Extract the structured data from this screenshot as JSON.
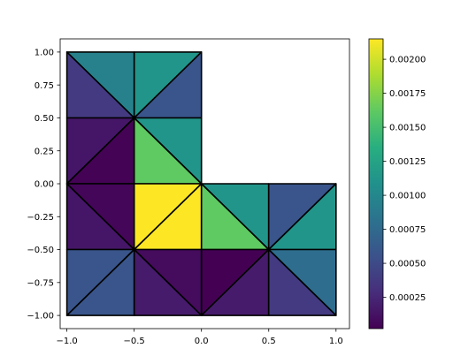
{
  "chart_data": {
    "type": "heatmap",
    "title": "",
    "xlabel": "",
    "ylabel": "",
    "xlim": [
      -1.05,
      1.1
    ],
    "ylim": [
      -1.1,
      1.1
    ],
    "grid": false,
    "legend": "none",
    "colormap": "viridis",
    "color_range": [
      2e-05,
      0.00215
    ],
    "x_ticks": [
      {
        "value": -1.0,
        "label": "−1.0"
      },
      {
        "value": -0.5,
        "label": "−0.5"
      },
      {
        "value": 0.0,
        "label": "0.0"
      },
      {
        "value": 0.5,
        "label": "0.5"
      },
      {
        "value": 1.0,
        "label": "1.0"
      }
    ],
    "y_ticks": [
      {
        "value": 1.0,
        "label": "1.00"
      },
      {
        "value": 0.75,
        "label": "0.75"
      },
      {
        "value": 0.5,
        "label": "0.50"
      },
      {
        "value": 0.25,
        "label": "0.25"
      },
      {
        "value": 0.0,
        "label": "0.00"
      },
      {
        "value": -0.25,
        "label": "−0.25"
      },
      {
        "value": -0.5,
        "label": "−0.50"
      },
      {
        "value": -0.75,
        "label": "−0.75"
      },
      {
        "value": -1.0,
        "label": "−1.00"
      }
    ],
    "colorbar_ticks": [
      {
        "value": 0.00025,
        "label": "0.00025"
      },
      {
        "value": 0.0005,
        "label": "0.00050"
      },
      {
        "value": 0.00075,
        "label": "0.00075"
      },
      {
        "value": 0.001,
        "label": "0.00100"
      },
      {
        "value": 0.00125,
        "label": "0.00125"
      },
      {
        "value": 0.0015,
        "label": "0.00150"
      },
      {
        "value": 0.00175,
        "label": "0.00175"
      },
      {
        "value": 0.002,
        "label": "0.00200"
      }
    ],
    "triangles": [
      {
        "vertices": [
          [
            -1.0,
            1.0
          ],
          [
            -0.5,
            1.0
          ],
          [
            -0.5,
            0.5
          ]
        ],
        "value": 0.00095
      },
      {
        "vertices": [
          [
            -1.0,
            1.0
          ],
          [
            -1.0,
            0.5
          ],
          [
            -0.5,
            0.5
          ]
        ],
        "value": 0.00038
      },
      {
        "vertices": [
          [
            -0.5,
            1.0
          ],
          [
            0.0,
            1.0
          ],
          [
            -0.5,
            0.5
          ]
        ],
        "value": 0.00112
      },
      {
        "vertices": [
          [
            0.0,
            1.0
          ],
          [
            0.0,
            0.5
          ],
          [
            -0.5,
            0.5
          ]
        ],
        "value": 0.00058
      },
      {
        "vertices": [
          [
            -1.0,
            0.5
          ],
          [
            -0.5,
            0.5
          ],
          [
            -1.0,
            0.0
          ]
        ],
        "value": 0.00015
      },
      {
        "vertices": [
          [
            -0.5,
            0.5
          ],
          [
            -1.0,
            0.0
          ],
          [
            -0.5,
            0.0
          ]
        ],
        "value": 3e-05
      },
      {
        "vertices": [
          [
            -0.5,
            0.5
          ],
          [
            0.0,
            0.5
          ],
          [
            0.0,
            0.0
          ]
        ],
        "value": 0.00112
      },
      {
        "vertices": [
          [
            -0.5,
            0.5
          ],
          [
            -0.5,
            0.0
          ],
          [
            0.0,
            0.0
          ]
        ],
        "value": 0.00162
      },
      {
        "vertices": [
          [
            -1.0,
            0.0
          ],
          [
            -0.5,
            0.0
          ],
          [
            -0.5,
            -0.5
          ]
        ],
        "value": 5e-05
      },
      {
        "vertices": [
          [
            -1.0,
            0.0
          ],
          [
            -1.0,
            -0.5
          ],
          [
            -0.5,
            -0.5
          ]
        ],
        "value": 0.00015
      },
      {
        "vertices": [
          [
            -0.5,
            0.0
          ],
          [
            0.0,
            0.0
          ],
          [
            -0.5,
            -0.5
          ]
        ],
        "value": 0.00215
      },
      {
        "vertices": [
          [
            0.0,
            0.0
          ],
          [
            0.0,
            -0.5
          ],
          [
            -0.5,
            -0.5
          ]
        ],
        "value": 0.00215
      },
      {
        "vertices": [
          [
            0.0,
            0.0
          ],
          [
            0.5,
            0.0
          ],
          [
            0.5,
            -0.5
          ]
        ],
        "value": 0.00112
      },
      {
        "vertices": [
          [
            0.0,
            0.0
          ],
          [
            0.0,
            -0.5
          ],
          [
            0.5,
            -0.5
          ]
        ],
        "value": 0.00162
      },
      {
        "vertices": [
          [
            0.5,
            0.0
          ],
          [
            1.0,
            0.0
          ],
          [
            0.5,
            -0.5
          ]
        ],
        "value": 0.00058
      },
      {
        "vertices": [
          [
            1.0,
            0.0
          ],
          [
            1.0,
            -0.5
          ],
          [
            0.5,
            -0.5
          ]
        ],
        "value": 0.00112
      },
      {
        "vertices": [
          [
            -1.0,
            -0.5
          ],
          [
            -0.5,
            -0.5
          ],
          [
            -1.0,
            -1.0
          ]
        ],
        "value": 0.00058
      },
      {
        "vertices": [
          [
            -0.5,
            -0.5
          ],
          [
            -1.0,
            -1.0
          ],
          [
            -0.5,
            -1.0
          ]
        ],
        "value": 0.00058
      },
      {
        "vertices": [
          [
            -0.5,
            -0.5
          ],
          [
            0.0,
            -0.5
          ],
          [
            0.0,
            -1.0
          ]
        ],
        "value": 8e-05
      },
      {
        "vertices": [
          [
            -0.5,
            -0.5
          ],
          [
            -0.5,
            -1.0
          ],
          [
            0.0,
            -1.0
          ]
        ],
        "value": 0.00018
      },
      {
        "vertices": [
          [
            0.0,
            -0.5
          ],
          [
            0.5,
            -0.5
          ],
          [
            0.0,
            -1.0
          ]
        ],
        "value": 2e-05
      },
      {
        "vertices": [
          [
            0.5,
            -0.5
          ],
          [
            0.0,
            -1.0
          ],
          [
            0.5,
            -1.0
          ]
        ],
        "value": 0.00018
      },
      {
        "vertices": [
          [
            0.5,
            -0.5
          ],
          [
            1.0,
            -0.5
          ],
          [
            1.0,
            -1.0
          ]
        ],
        "value": 0.00078
      },
      {
        "vertices": [
          [
            0.5,
            -0.5
          ],
          [
            0.5,
            -1.0
          ],
          [
            1.0,
            -1.0
          ]
        ],
        "value": 0.00038
      }
    ]
  }
}
